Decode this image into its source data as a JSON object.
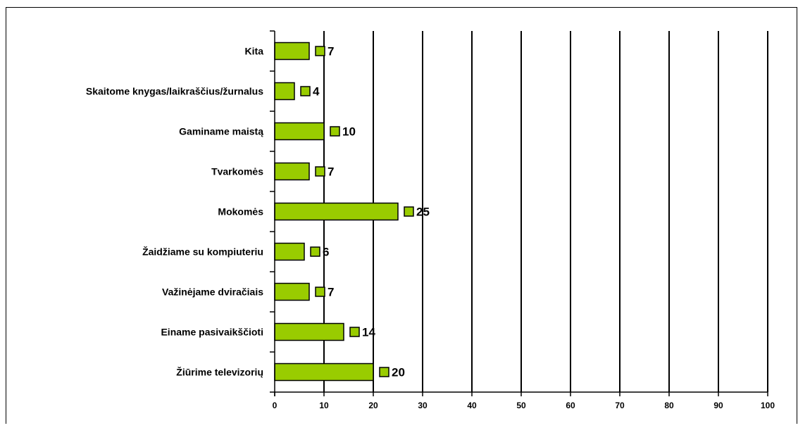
{
  "chart_data": {
    "type": "bar",
    "orientation": "horizontal",
    "categories": [
      "Kita",
      "Skaitome knygas/laikraščius/žurnalus",
      "Gaminame maistą",
      "Tvarkomės",
      "Mokomės",
      "Žaidžiame su kompiuteriu",
      "Važinėjame dviračiais",
      "Einame pasivaikščioti",
      "Žiūrime televizorių"
    ],
    "values": [
      7,
      4,
      10,
      7,
      25,
      6,
      7,
      14,
      20
    ],
    "xlim": [
      0,
      100
    ],
    "xticks": [
      0,
      10,
      20,
      30,
      40,
      50,
      60,
      70,
      80,
      90,
      100
    ],
    "grid": true,
    "bar_color": "#99cc00",
    "title": "",
    "xlabel": "",
    "ylabel": ""
  }
}
